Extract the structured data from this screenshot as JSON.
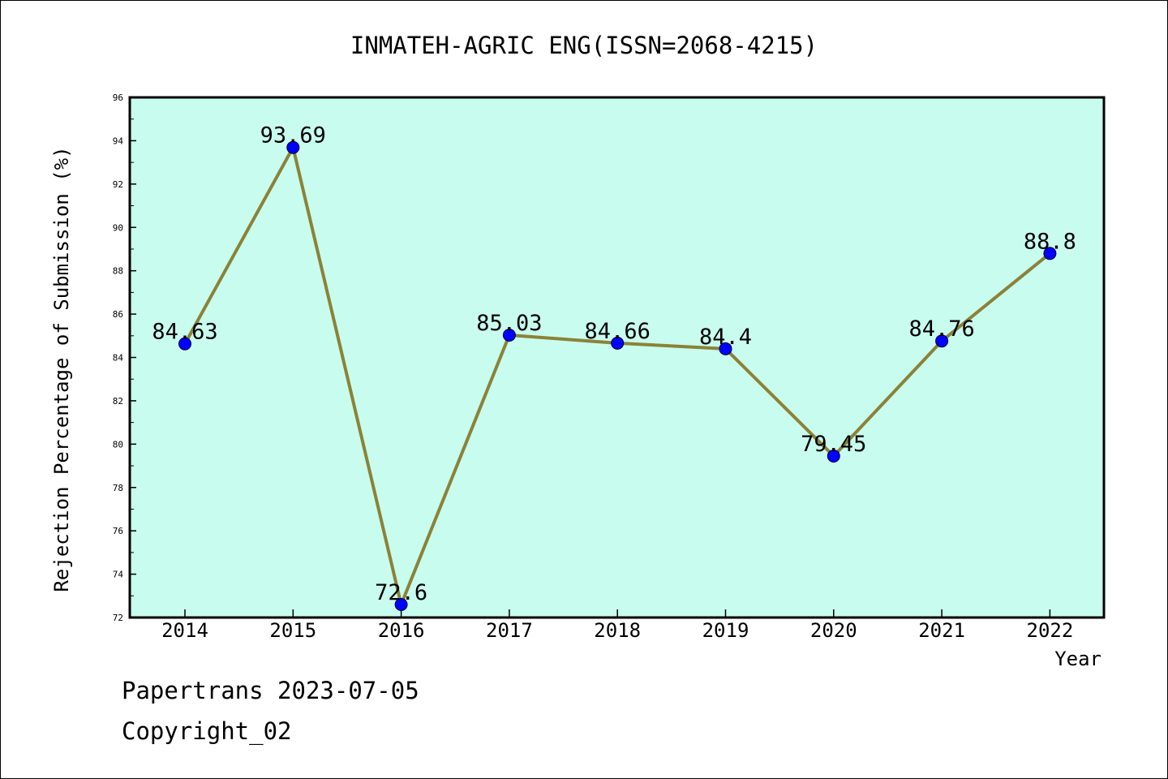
{
  "chart_data": {
    "type": "line",
    "title": "INMATEH-AGRIC ENG(ISSN=2068-4215)",
    "xlabel": "Year",
    "ylabel": "Rejection Percentage of Submission (%)",
    "categories": [
      "2014",
      "2015",
      "2016",
      "2017",
      "2018",
      "2019",
      "2020",
      "2021",
      "2022"
    ],
    "values": [
      84.63,
      93.69,
      72.6,
      85.03,
      84.66,
      84.4,
      79.45,
      84.76,
      88.8
    ],
    "data_labels": [
      "84.63",
      "93.69",
      "72.6",
      "85.03",
      "84.66",
      "84.4",
      "79.45",
      "84.76",
      "88.8"
    ],
    "ylim": [
      72,
      96
    ],
    "yticks": [
      72,
      74,
      76,
      78,
      80,
      82,
      84,
      86,
      88,
      90,
      92,
      94,
      96
    ],
    "grid": false,
    "colors": {
      "plot_background": "#c8fcee",
      "line": "#8b8238",
      "marker": "#0000ff"
    }
  },
  "footer": {
    "line1": "Papertrans 2023-07-05",
    "line2": "Copyright_02"
  }
}
